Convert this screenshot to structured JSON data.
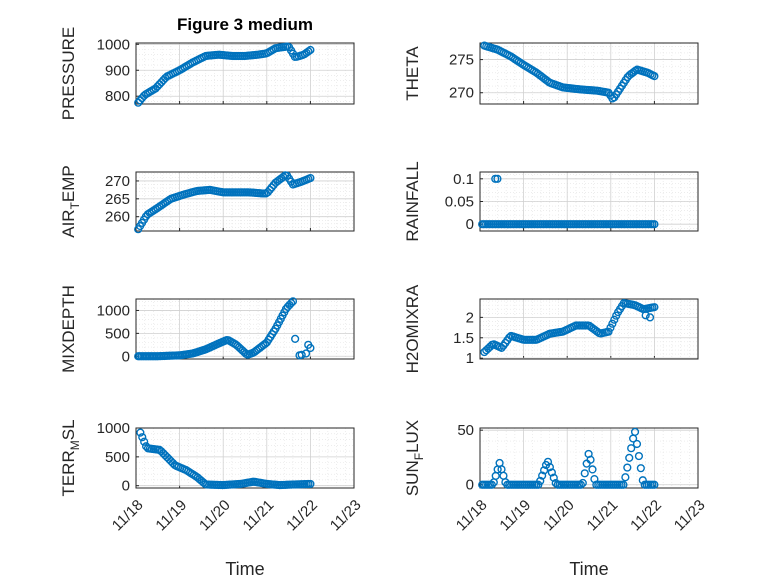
{
  "figure_title": "Figure 3 medium",
  "style": {
    "marker_color": "#0072BD",
    "axis_color": "#262626",
    "grid_color": "#d0d0d0"
  },
  "x_axis": {
    "label": "Time",
    "ticks": [
      0,
      1,
      2,
      3,
      4,
      5
    ],
    "tick_labels": [
      "11/18",
      "11/19",
      "11/20",
      "11/21",
      "11/22",
      "11/23"
    ],
    "xlim": [
      0,
      5
    ]
  },
  "chart_data": [
    {
      "type": "scatter",
      "ylabel": {
        "base": "PRESSURE",
        "sub": "",
        "tail": ""
      },
      "ylim": [
        770,
        1005
      ],
      "yticks": [
        800,
        900,
        1000
      ],
      "ytick_labels": [
        "800",
        "900",
        "1000"
      ],
      "knots": [
        [
          0.05,
          775
        ],
        [
          0.2,
          805
        ],
        [
          0.45,
          830
        ],
        [
          0.7,
          875
        ],
        [
          1.0,
          900
        ],
        [
          1.3,
          930
        ],
        [
          1.6,
          955
        ],
        [
          1.9,
          960
        ],
        [
          2.2,
          955
        ],
        [
          2.5,
          955
        ],
        [
          2.8,
          960
        ],
        [
          3.0,
          965
        ],
        [
          3.2,
          985
        ],
        [
          3.5,
          992
        ],
        [
          3.65,
          950
        ],
        [
          3.85,
          960
        ],
        [
          4.0,
          978
        ]
      ]
    },
    {
      "type": "scatter",
      "ylabel": {
        "base": "THETA",
        "sub": "",
        "tail": ""
      },
      "ylim": [
        268.3,
        277.5
      ],
      "yticks": [
        270,
        275
      ],
      "ytick_labels": [
        "270",
        "275"
      ],
      "knots": [
        [
          0.1,
          277.1
        ],
        [
          0.4,
          276.5
        ],
        [
          0.7,
          275.5
        ],
        [
          1.0,
          274.2
        ],
        [
          1.3,
          273.0
        ],
        [
          1.6,
          271.5
        ],
        [
          1.9,
          270.8
        ],
        [
          2.3,
          270.5
        ],
        [
          2.7,
          270.3
        ],
        [
          2.95,
          270.0
        ],
        [
          3.05,
          269.0
        ],
        [
          3.2,
          270.5
        ],
        [
          3.4,
          272.5
        ],
        [
          3.6,
          273.5
        ],
        [
          3.85,
          273.0
        ],
        [
          4.0,
          272.5
        ]
      ]
    },
    {
      "type": "scatter",
      "ylabel": {
        "base": "AIR",
        "sub": "T",
        "tail": "EMP"
      },
      "ylim": [
        256,
        272.5
      ],
      "yticks": [
        260,
        265,
        270
      ],
      "ytick_labels": [
        "260",
        "265",
        "270"
      ],
      "knots": [
        [
          0.05,
          256.5
        ],
        [
          0.25,
          260.5
        ],
        [
          0.5,
          262.5
        ],
        [
          0.8,
          265.0
        ],
        [
          1.1,
          266.2
        ],
        [
          1.4,
          267.2
        ],
        [
          1.7,
          267.5
        ],
        [
          2.0,
          266.8
        ],
        [
          2.3,
          266.8
        ],
        [
          2.6,
          266.8
        ],
        [
          2.9,
          266.5
        ],
        [
          3.0,
          266.5
        ],
        [
          3.2,
          269.5
        ],
        [
          3.45,
          271.8
        ],
        [
          3.6,
          269.0
        ],
        [
          3.8,
          269.8
        ],
        [
          4.0,
          270.8
        ]
      ]
    },
    {
      "type": "scatter",
      "ylabel": {
        "base": "RAINFALL",
        "sub": "",
        "tail": ""
      },
      "ylim": [
        -0.015,
        0.115
      ],
      "yticks": [
        0,
        0.05,
        0.1
      ],
      "ytick_labels": [
        "0",
        "0.05",
        "0.1"
      ],
      "knots": [
        [
          0.05,
          0
        ],
        [
          4.0,
          0
        ]
      ],
      "extra_points": [
        [
          0.35,
          0.1
        ],
        [
          0.4,
          0.1
        ]
      ]
    },
    {
      "type": "scatter",
      "ylabel": {
        "base": "MIXDEPTH",
        "sub": "",
        "tail": ""
      },
      "ylim": [
        -60,
        1250
      ],
      "yticks": [
        0,
        500,
        1000
      ],
      "ytick_labels": [
        "0",
        "500",
        "1000"
      ],
      "knots": [
        [
          0.05,
          0
        ],
        [
          0.5,
          0
        ],
        [
          1.0,
          20
        ],
        [
          1.3,
          60
        ],
        [
          1.6,
          150
        ],
        [
          1.9,
          280
        ],
        [
          2.1,
          360
        ],
        [
          2.3,
          250
        ],
        [
          2.55,
          30
        ],
        [
          2.7,
          80
        ],
        [
          3.0,
          300
        ],
        [
          3.2,
          600
        ],
        [
          3.45,
          1050
        ],
        [
          3.6,
          1200
        ]
      ],
      "extra_points": [
        [
          3.65,
          380
        ],
        [
          3.75,
          20
        ],
        [
          3.8,
          30
        ],
        [
          3.9,
          60
        ],
        [
          3.95,
          250
        ],
        [
          4.0,
          180
        ]
      ]
    },
    {
      "type": "scatter",
      "ylabel": {
        "base": "H2OMIXRA",
        "sub": "",
        "tail": ""
      },
      "ylim": [
        0.98,
        2.45
      ],
      "yticks": [
        1,
        1.5,
        2
      ],
      "ytick_labels": [
        "1",
        "1.5",
        "2"
      ],
      "knots": [
        [
          0.1,
          1.15
        ],
        [
          0.3,
          1.35
        ],
        [
          0.5,
          1.25
        ],
        [
          0.7,
          1.55
        ],
        [
          1.0,
          1.45
        ],
        [
          1.3,
          1.45
        ],
        [
          1.6,
          1.6
        ],
        [
          1.9,
          1.65
        ],
        [
          2.2,
          1.8
        ],
        [
          2.5,
          1.8
        ],
        [
          2.75,
          1.6
        ],
        [
          2.95,
          1.65
        ],
        [
          3.15,
          2.1
        ],
        [
          3.3,
          2.35
        ],
        [
          3.55,
          2.3
        ],
        [
          3.75,
          2.2
        ],
        [
          4.0,
          2.25
        ]
      ],
      "extra_points": [
        [
          3.8,
          2.05
        ],
        [
          3.9,
          2.0
        ]
      ]
    },
    {
      "type": "scatter",
      "ylabel": {
        "base": "TERR",
        "sub": "M",
        "tail": "SL"
      },
      "ylim": [
        -40,
        1000
      ],
      "yticks": [
        0,
        500,
        1000
      ],
      "ytick_labels": [
        "0",
        "500",
        "1000"
      ],
      "knots": [
        [
          0.1,
          920
        ],
        [
          0.25,
          650
        ],
        [
          0.55,
          620
        ],
        [
          0.9,
          350
        ],
        [
          1.15,
          270
        ],
        [
          1.4,
          150
        ],
        [
          1.6,
          20
        ],
        [
          2.0,
          10
        ],
        [
          2.4,
          30
        ],
        [
          2.7,
          70
        ],
        [
          3.0,
          30
        ],
        [
          3.3,
          10
        ],
        [
          3.6,
          20
        ],
        [
          4.0,
          30
        ]
      ]
    },
    {
      "type": "scatter",
      "ylabel": {
        "base": "SUN",
        "sub": "F",
        "tail": "LUX"
      },
      "ylim": [
        -3,
        52
      ],
      "yticks": [
        0,
        50
      ],
      "ytick_labels": [
        "0",
        "50"
      ],
      "knots": [
        [
          0.05,
          0
        ],
        [
          0.3,
          0
        ],
        [
          0.45,
          20
        ],
        [
          0.6,
          0
        ],
        [
          1.0,
          0
        ],
        [
          1.35,
          0
        ],
        [
          1.55,
          22
        ],
        [
          1.75,
          0
        ],
        [
          2.1,
          0
        ],
        [
          2.35,
          0
        ],
        [
          2.5,
          30
        ],
        [
          2.65,
          0
        ],
        [
          3.1,
          0
        ],
        [
          3.3,
          0
        ],
        [
          3.55,
          50
        ],
        [
          3.75,
          0
        ],
        [
          4.0,
          0
        ]
      ]
    }
  ]
}
